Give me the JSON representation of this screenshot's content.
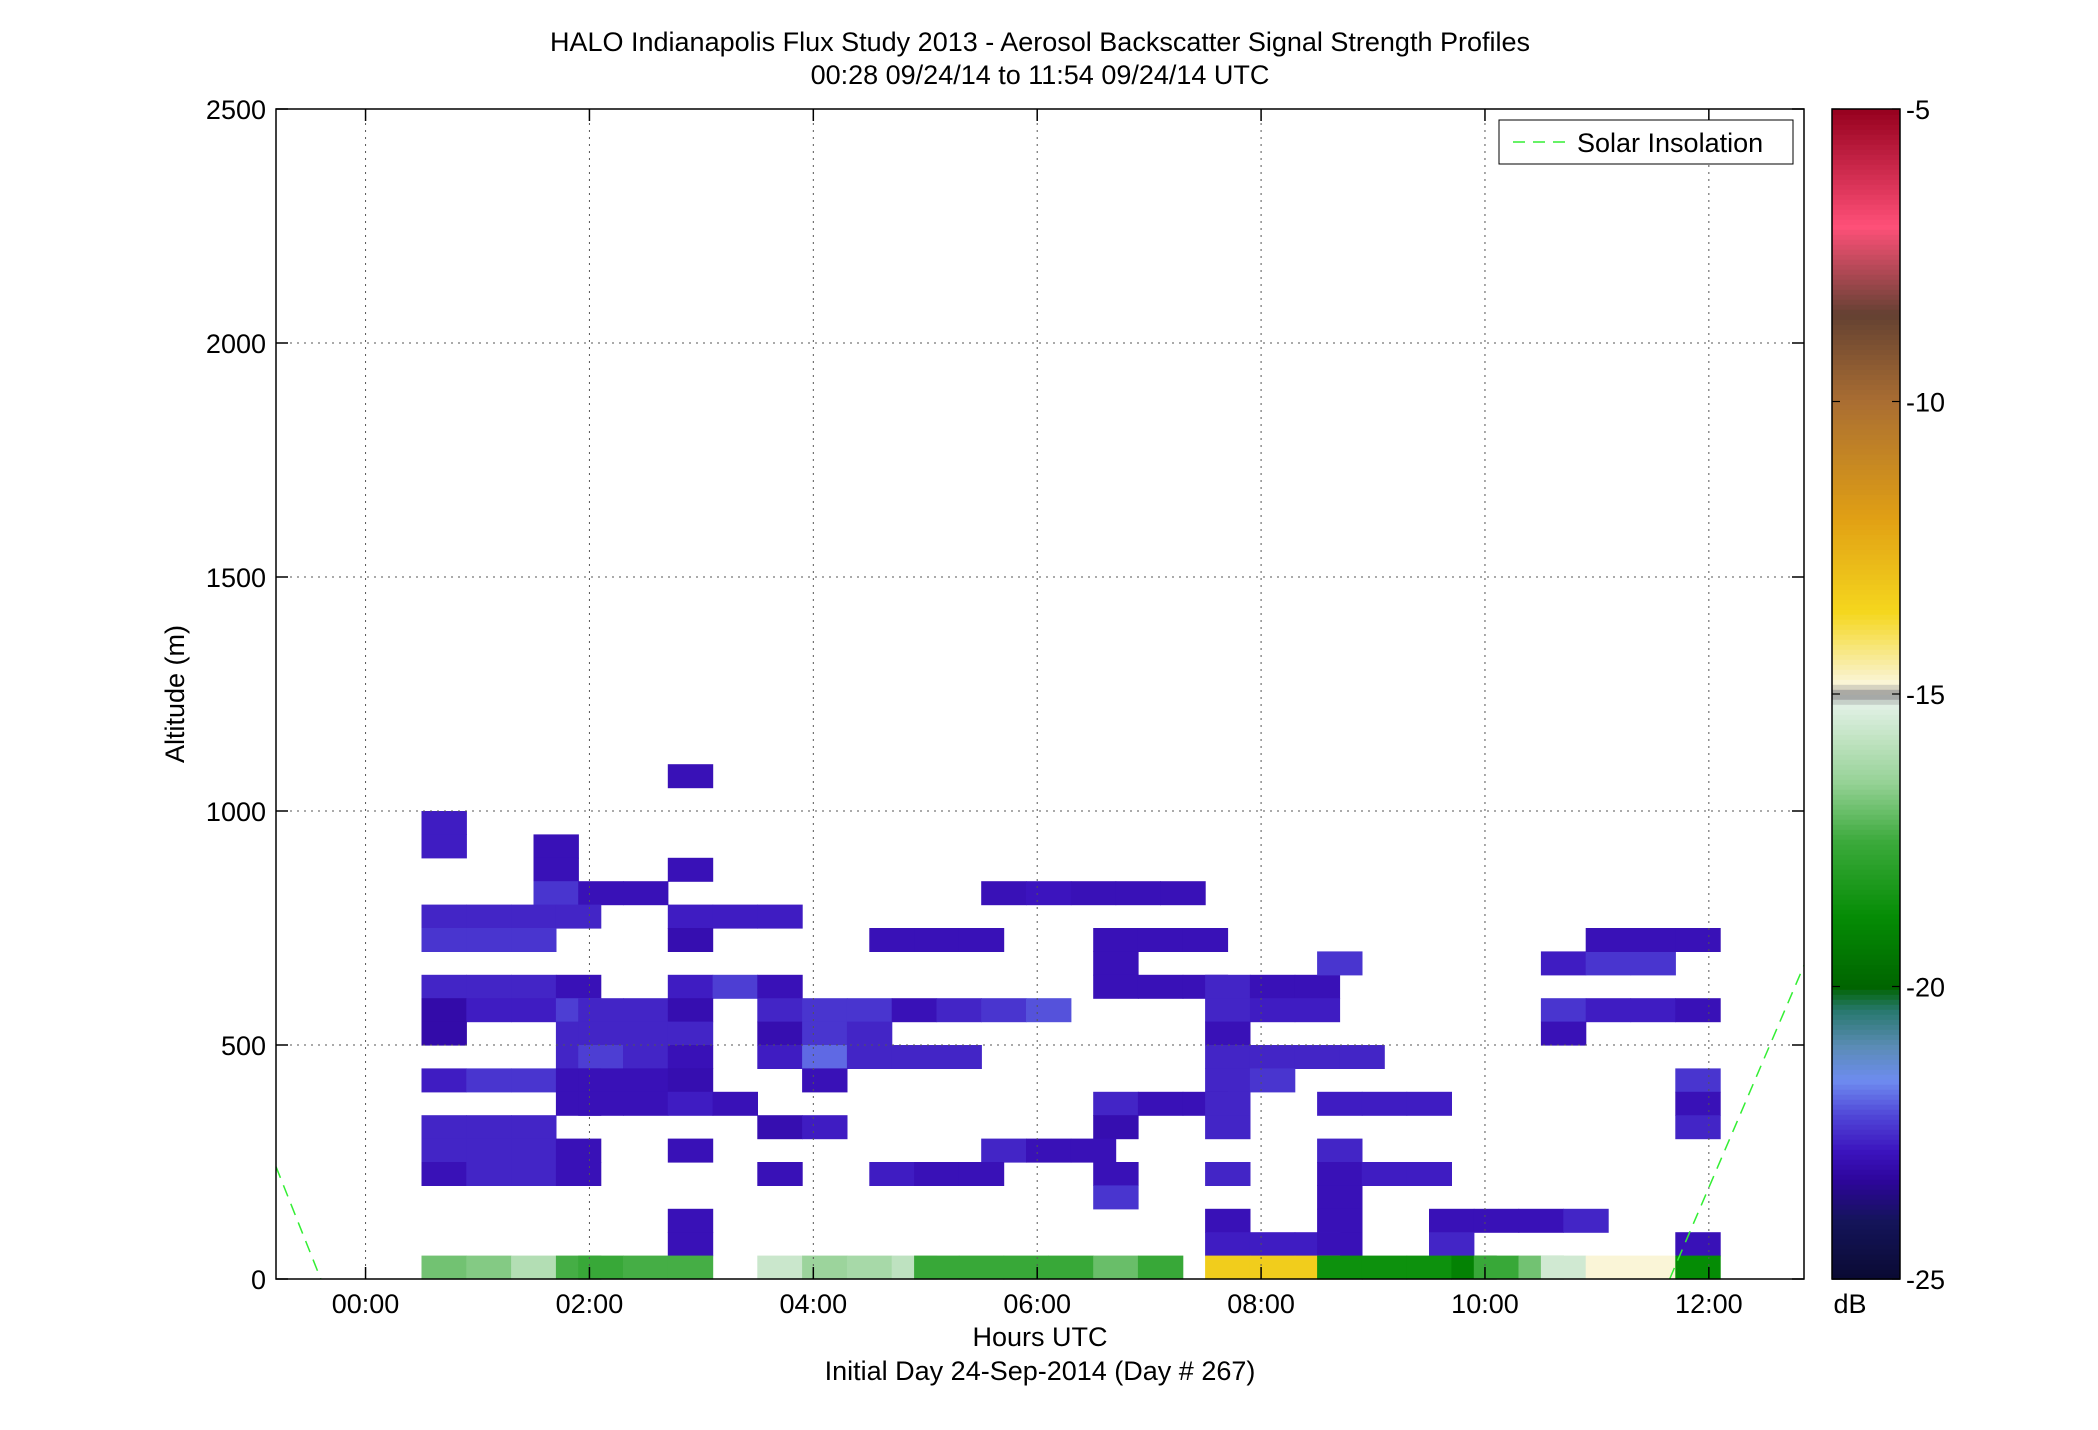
{
  "chart_data": {
    "type": "heatmap",
    "title": "HALO Indianapolis Flux Study 2013 - Aerosol Backscatter Signal Strength Profiles",
    "subtitle": "00:28 09/24/14 to 11:54 09/24/14  UTC",
    "xlabel": "Hours UTC",
    "xlabel2": "Initial Day 24-Sep-2014 (Day # 267)",
    "ylabel": "Altitude (m)",
    "xlim": [
      -0.8,
      12.85
    ],
    "ylim": [
      0,
      2500
    ],
    "xticks": [
      0,
      2,
      4,
      6,
      8,
      10,
      12
    ],
    "xtick_labels": [
      "00:00",
      "02:00",
      "04:00",
      "06:00",
      "08:00",
      "10:00",
      "12:00"
    ],
    "yticks": [
      0,
      500,
      1000,
      1500,
      2000,
      2500
    ],
    "ytick_labels": [
      "0",
      "500",
      "1000",
      "1500",
      "2000",
      "2500"
    ],
    "grid": true,
    "legend": {
      "entries": [
        "Solar Insolation"
      ],
      "location": "top-right",
      "line_color": "#33ee33"
    },
    "colorbar": {
      "label": "dB",
      "range": [
        -25,
        -5
      ],
      "ticks": [
        -5,
        -10,
        -15,
        -20,
        -25
      ],
      "tick_labels": [
        "-5",
        "-10",
        "-15",
        "-20",
        "-25"
      ]
    },
    "cell_width_hours": 0.4,
    "cell_height_m": 50,
    "solar_insolation": [
      [
        [
          -0.8,
          240
        ],
        [
          -0.4,
          0
        ]
      ],
      [
        [
          11.65,
          0
        ],
        [
          12.85,
          670
        ]
      ]
    ],
    "cells": [
      [
        0.5,
        975,
        -22.7
      ],
      [
        0.5,
        925,
        -22.7
      ],
      [
        1.5,
        925,
        -22.9
      ],
      [
        1.5,
        875,
        -22.9
      ],
      [
        1.5,
        825,
        -22.4
      ],
      [
        1.9,
        825,
        -22.9
      ],
      [
        2.3,
        825,
        -22.9
      ],
      [
        2.7,
        1075,
        -22.9
      ],
      [
        2.7,
        875,
        -22.9
      ],
      [
        0.5,
        775,
        -22.6
      ],
      [
        0.9,
        775,
        -22.6
      ],
      [
        1.3,
        775,
        -22.6
      ],
      [
        1.7,
        775,
        -22.6
      ],
      [
        0.5,
        725,
        -22.4
      ],
      [
        0.9,
        725,
        -22.4
      ],
      [
        1.3,
        725,
        -22.4
      ],
      [
        2.7,
        775,
        -22.7
      ],
      [
        3.1,
        775,
        -22.7
      ],
      [
        3.5,
        775,
        -22.7
      ],
      [
        2.7,
        725,
        -23.0
      ],
      [
        4.5,
        725,
        -22.9
      ],
      [
        4.9,
        725,
        -22.9
      ],
      [
        5.3,
        725,
        -22.9
      ],
      [
        5.5,
        825,
        -22.9
      ],
      [
        5.9,
        825,
        -22.8
      ],
      [
        6.3,
        825,
        -22.9
      ],
      [
        6.7,
        825,
        -22.9
      ],
      [
        7.1,
        825,
        -22.9
      ],
      [
        6.5,
        725,
        -22.9
      ],
      [
        6.9,
        725,
        -22.9
      ],
      [
        7.3,
        725,
        -22.9
      ],
      [
        6.5,
        675,
        -22.9
      ],
      [
        0.5,
        625,
        -22.6
      ],
      [
        0.9,
        625,
        -22.6
      ],
      [
        1.3,
        625,
        -22.6
      ],
      [
        1.7,
        625,
        -22.9
      ],
      [
        2.7,
        625,
        -22.7
      ],
      [
        3.1,
        625,
        -22.3
      ],
      [
        3.5,
        625,
        -22.9
      ],
      [
        6.5,
        625,
        -22.9
      ],
      [
        6.9,
        625,
        -22.9
      ],
      [
        7.3,
        625,
        -22.9
      ],
      [
        7.5,
        625,
        -22.6
      ],
      [
        7.9,
        625,
        -22.9
      ],
      [
        8.3,
        625,
        -22.9
      ],
      [
        8.5,
        675,
        -22.4
      ],
      [
        10.5,
        675,
        -22.7
      ],
      [
        10.9,
        675,
        -22.4
      ],
      [
        11.3,
        675,
        -22.4
      ],
      [
        10.9,
        725,
        -22.9
      ],
      [
        11.3,
        725,
        -22.9
      ],
      [
        11.7,
        725,
        -22.9
      ],
      [
        0.5,
        575,
        -23.1
      ],
      [
        0.9,
        575,
        -22.7
      ],
      [
        1.3,
        575,
        -22.7
      ],
      [
        1.7,
        575,
        -22.3
      ],
      [
        1.9,
        575,
        -22.6
      ],
      [
        2.3,
        575,
        -22.6
      ],
      [
        2.7,
        575,
        -23.0
      ],
      [
        3.5,
        575,
        -22.6
      ],
      [
        3.9,
        575,
        -22.4
      ],
      [
        4.3,
        575,
        -22.4
      ],
      [
        4.7,
        575,
        -22.9
      ],
      [
        5.1,
        575,
        -22.6
      ],
      [
        5.5,
        575,
        -22.4
      ],
      [
        5.9,
        575,
        -22.1
      ],
      [
        7.5,
        575,
        -22.6
      ],
      [
        7.9,
        575,
        -22.7
      ],
      [
        8.3,
        575,
        -22.7
      ],
      [
        10.5,
        575,
        -22.4
      ],
      [
        10.9,
        575,
        -22.7
      ],
      [
        11.3,
        575,
        -22.7
      ],
      [
        11.7,
        575,
        -22.9
      ],
      [
        0.5,
        525,
        -23.1
      ],
      [
        1.7,
        525,
        -22.6
      ],
      [
        1.9,
        525,
        -22.6
      ],
      [
        2.3,
        525,
        -22.6
      ],
      [
        2.7,
        525,
        -22.6
      ],
      [
        3.5,
        525,
        -23.0
      ],
      [
        3.9,
        525,
        -22.4
      ],
      [
        4.3,
        525,
        -22.6
      ],
      [
        7.5,
        525,
        -22.9
      ],
      [
        10.5,
        525,
        -22.9
      ],
      [
        1.7,
        475,
        -22.6
      ],
      [
        1.9,
        475,
        -22.3
      ],
      [
        2.3,
        475,
        -22.6
      ],
      [
        2.7,
        475,
        -22.9
      ],
      [
        3.5,
        475,
        -22.7
      ],
      [
        3.9,
        475,
        -21.9
      ],
      [
        4.3,
        475,
        -22.6
      ],
      [
        4.7,
        475,
        -22.6
      ],
      [
        5.1,
        475,
        -22.6
      ],
      [
        7.5,
        475,
        -22.6
      ],
      [
        7.9,
        475,
        -22.6
      ],
      [
        8.3,
        475,
        -22.6
      ],
      [
        8.7,
        475,
        -22.6
      ],
      [
        0.5,
        425,
        -22.7
      ],
      [
        0.9,
        425,
        -22.4
      ],
      [
        1.3,
        425,
        -22.4
      ],
      [
        1.7,
        425,
        -22.9
      ],
      [
        1.9,
        425,
        -22.9
      ],
      [
        2.3,
        425,
        -22.9
      ],
      [
        2.7,
        425,
        -23.0
      ],
      [
        3.9,
        425,
        -22.9
      ],
      [
        7.5,
        425,
        -22.6
      ],
      [
        7.9,
        425,
        -22.4
      ],
      [
        11.7,
        425,
        -22.4
      ],
      [
        1.7,
        375,
        -22.9
      ],
      [
        1.9,
        375,
        -22.9
      ],
      [
        2.3,
        375,
        -22.9
      ],
      [
        2.7,
        375,
        -22.7
      ],
      [
        3.1,
        375,
        -22.9
      ],
      [
        6.5,
        375,
        -22.6
      ],
      [
        6.9,
        375,
        -22.9
      ],
      [
        7.3,
        375,
        -22.9
      ],
      [
        7.5,
        375,
        -22.6
      ],
      [
        8.5,
        375,
        -22.7
      ],
      [
        8.9,
        375,
        -22.7
      ],
      [
        9.3,
        375,
        -22.7
      ],
      [
        11.7,
        375,
        -22.9
      ],
      [
        0.5,
        325,
        -22.6
      ],
      [
        0.9,
        325,
        -22.6
      ],
      [
        1.3,
        325,
        -22.6
      ],
      [
        3.5,
        325,
        -23.0
      ],
      [
        3.9,
        325,
        -22.7
      ],
      [
        6.5,
        325,
        -23.0
      ],
      [
        7.5,
        325,
        -22.6
      ],
      [
        11.7,
        325,
        -22.6
      ],
      [
        0.5,
        275,
        -22.6
      ],
      [
        0.9,
        275,
        -22.6
      ],
      [
        1.3,
        275,
        -22.6
      ],
      [
        1.7,
        275,
        -22.9
      ],
      [
        2.7,
        275,
        -22.9
      ],
      [
        5.5,
        275,
        -22.6
      ],
      [
        5.9,
        275,
        -22.9
      ],
      [
        6.3,
        275,
        -22.9
      ],
      [
        8.5,
        275,
        -22.6
      ],
      [
        0.5,
        225,
        -22.9
      ],
      [
        0.9,
        225,
        -22.6
      ],
      [
        1.3,
        225,
        -22.6
      ],
      [
        1.7,
        225,
        -22.9
      ],
      [
        3.5,
        225,
        -22.9
      ],
      [
        4.5,
        225,
        -22.7
      ],
      [
        4.9,
        225,
        -22.9
      ],
      [
        5.3,
        225,
        -22.9
      ],
      [
        6.5,
        225,
        -22.9
      ],
      [
        7.5,
        225,
        -22.6
      ],
      [
        8.5,
        225,
        -22.9
      ],
      [
        8.9,
        225,
        -22.7
      ],
      [
        9.3,
        225,
        -22.7
      ],
      [
        6.5,
        175,
        -22.4
      ],
      [
        8.5,
        175,
        -22.9
      ],
      [
        2.7,
        125,
        -22.9
      ],
      [
        7.5,
        125,
        -22.9
      ],
      [
        8.5,
        125,
        -22.9
      ],
      [
        9.5,
        125,
        -22.9
      ],
      [
        9.9,
        125,
        -22.9
      ],
      [
        10.3,
        125,
        -22.9
      ],
      [
        10.7,
        125,
        -22.6
      ],
      [
        2.7,
        75,
        -22.9
      ],
      [
        7.5,
        75,
        -22.7
      ],
      [
        7.9,
        75,
        -22.7
      ],
      [
        8.3,
        75,
        -22.7
      ],
      [
        8.5,
        75,
        -22.9
      ],
      [
        9.5,
        75,
        -22.6
      ],
      [
        11.7,
        75,
        -22.9
      ],
      [
        0.5,
        25,
        -16.9
      ],
      [
        0.9,
        25,
        -16.7
      ],
      [
        1.3,
        25,
        -16.0
      ],
      [
        1.7,
        25,
        -17.4
      ],
      [
        1.9,
        25,
        -17.6
      ],
      [
        2.3,
        25,
        -17.4
      ],
      [
        2.7,
        25,
        -17.4
      ],
      [
        3.5,
        25,
        -15.6
      ],
      [
        3.9,
        25,
        -16.4
      ],
      [
        4.3,
        25,
        -16.2
      ],
      [
        4.7,
        25,
        -15.8
      ],
      [
        4.9,
        25,
        -17.6
      ],
      [
        5.3,
        25,
        -17.6
      ],
      [
        5.7,
        25,
        -17.6
      ],
      [
        6.1,
        25,
        -17.6
      ],
      [
        6.5,
        25,
        -17.0
      ],
      [
        6.9,
        25,
        -17.6
      ],
      [
        7.5,
        25,
        -13.3
      ],
      [
        7.9,
        25,
        -13.3
      ],
      [
        8.3,
        25,
        -13.3
      ],
      [
        8.5,
        25,
        -18.6
      ],
      [
        8.9,
        25,
        -18.6
      ],
      [
        9.3,
        25,
        -18.6
      ],
      [
        9.7,
        25,
        -19.1
      ],
      [
        9.9,
        25,
        -17.6
      ],
      [
        10.3,
        25,
        -16.9
      ],
      [
        10.5,
        25,
        -15.5
      ],
      [
        10.9,
        25,
        -14.8
      ],
      [
        11.3,
        25,
        -14.8
      ],
      [
        11.7,
        25,
        -18.8
      ]
    ]
  }
}
